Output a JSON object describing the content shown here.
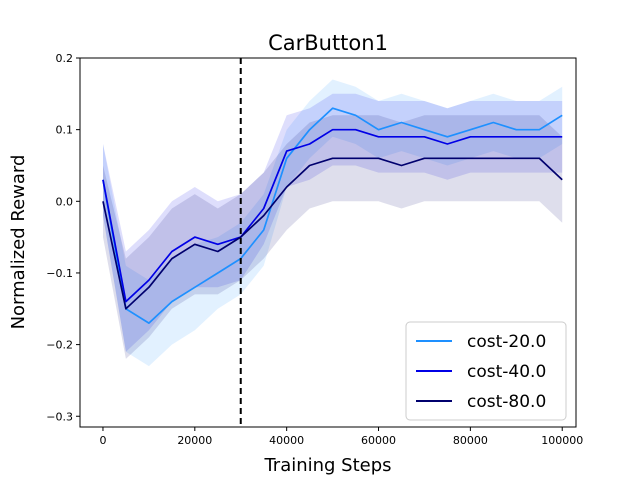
{
  "chart_data": {
    "type": "line",
    "title": "CarButton1",
    "xlabel": "Training Steps",
    "ylabel": "Normalized Reward",
    "xlim": [
      -5000,
      103000
    ],
    "ylim": [
      -0.315,
      0.2
    ],
    "xticks": [
      0,
      20000,
      40000,
      60000,
      80000,
      100000
    ],
    "xtick_labels": [
      "0",
      "20000",
      "40000",
      "60000",
      "80000",
      "100000"
    ],
    "yticks": [
      -0.3,
      -0.2,
      -0.1,
      0.0,
      0.1,
      0.2
    ],
    "ytick_labels": [
      "−0.3",
      "−0.2",
      "−0.1",
      "0.0",
      "0.1",
      "0.2"
    ],
    "vline_x": 30000,
    "legend_position": "lower-right",
    "series": [
      {
        "name": "cost-20.0",
        "color": "#1e90ff",
        "x": [
          0,
          5000,
          10000,
          15000,
          20000,
          25000,
          30000,
          35000,
          40000,
          45000,
          50000,
          55000,
          60000,
          65000,
          70000,
          75000,
          80000,
          85000,
          90000,
          95000,
          100000
        ],
        "values": [
          0.03,
          -0.15,
          -0.17,
          -0.14,
          -0.12,
          -0.1,
          -0.08,
          -0.04,
          0.06,
          0.1,
          0.13,
          0.12,
          0.1,
          0.11,
          0.1,
          0.09,
          0.1,
          0.11,
          0.1,
          0.1,
          0.12
        ],
        "band": [
          0.05,
          0.06,
          0.06,
          0.06,
          0.06,
          0.05,
          0.05,
          0.05,
          0.04,
          0.04,
          0.04,
          0.04,
          0.04,
          0.04,
          0.04,
          0.04,
          0.04,
          0.04,
          0.04,
          0.04,
          0.04
        ]
      },
      {
        "name": "cost-40.0",
        "color": "#0000e6",
        "x": [
          0,
          5000,
          10000,
          15000,
          20000,
          25000,
          30000,
          35000,
          40000,
          45000,
          50000,
          55000,
          60000,
          65000,
          70000,
          75000,
          80000,
          85000,
          90000,
          95000,
          100000
        ],
        "values": [
          0.03,
          -0.14,
          -0.11,
          -0.07,
          -0.05,
          -0.06,
          -0.05,
          -0.01,
          0.07,
          0.08,
          0.1,
          0.1,
          0.09,
          0.09,
          0.09,
          0.08,
          0.09,
          0.09,
          0.09,
          0.09,
          0.09
        ],
        "band": [
          0.05,
          0.07,
          0.07,
          0.07,
          0.07,
          0.06,
          0.06,
          0.05,
          0.05,
          0.05,
          0.05,
          0.05,
          0.05,
          0.05,
          0.05,
          0.05,
          0.05,
          0.05,
          0.05,
          0.05,
          0.05
        ]
      },
      {
        "name": "cost-80.0",
        "color": "#00006e",
        "x": [
          0,
          5000,
          10000,
          15000,
          20000,
          25000,
          30000,
          35000,
          40000,
          45000,
          50000,
          55000,
          60000,
          65000,
          70000,
          75000,
          80000,
          85000,
          90000,
          95000,
          100000
        ],
        "values": [
          0.0,
          -0.15,
          -0.12,
          -0.08,
          -0.06,
          -0.07,
          -0.05,
          -0.02,
          0.02,
          0.05,
          0.06,
          0.06,
          0.06,
          0.05,
          0.06,
          0.06,
          0.06,
          0.06,
          0.06,
          0.06,
          0.03
        ],
        "band": [
          0.05,
          0.07,
          0.07,
          0.07,
          0.07,
          0.06,
          0.06,
          0.06,
          0.06,
          0.06,
          0.06,
          0.06,
          0.06,
          0.06,
          0.06,
          0.06,
          0.06,
          0.06,
          0.06,
          0.06,
          0.06
        ]
      }
    ]
  }
}
